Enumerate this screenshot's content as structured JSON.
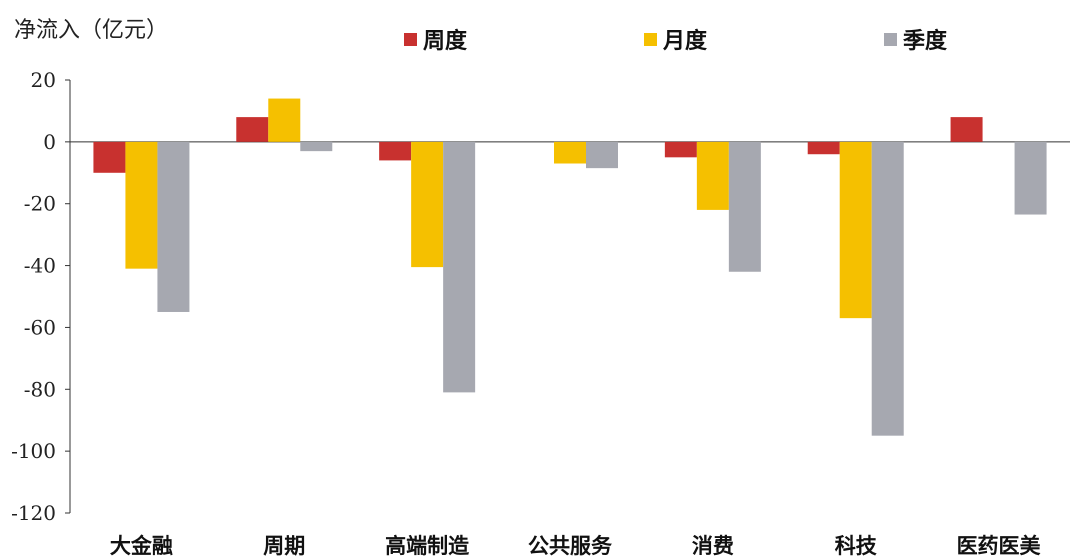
{
  "chart_data": {
    "type": "bar",
    "ylabel": "净流入（亿元）",
    "categories": [
      "大金融",
      "周期",
      "高端制造",
      "公共服务",
      "消费",
      "科技",
      "医药医美"
    ],
    "series": [
      {
        "name": "周度",
        "color": "#C8312F",
        "values": [
          -10,
          8,
          -6,
          0,
          -5,
          -4,
          8
        ]
      },
      {
        "name": "月度",
        "color": "#F5C000",
        "values": [
          -41,
          14,
          -40.5,
          -7,
          -22,
          -57,
          0
        ]
      },
      {
        "name": "季度",
        "color": "#A6A8B0",
        "values": [
          -55,
          -3,
          -81,
          -8.5,
          -42,
          -95,
          -23.5
        ]
      }
    ],
    "ylim": [
      -120,
      20
    ],
    "yticks": [
      20,
      0,
      -20,
      -40,
      -60,
      -80,
      -100,
      -120
    ],
    "legend_position": "top"
  }
}
